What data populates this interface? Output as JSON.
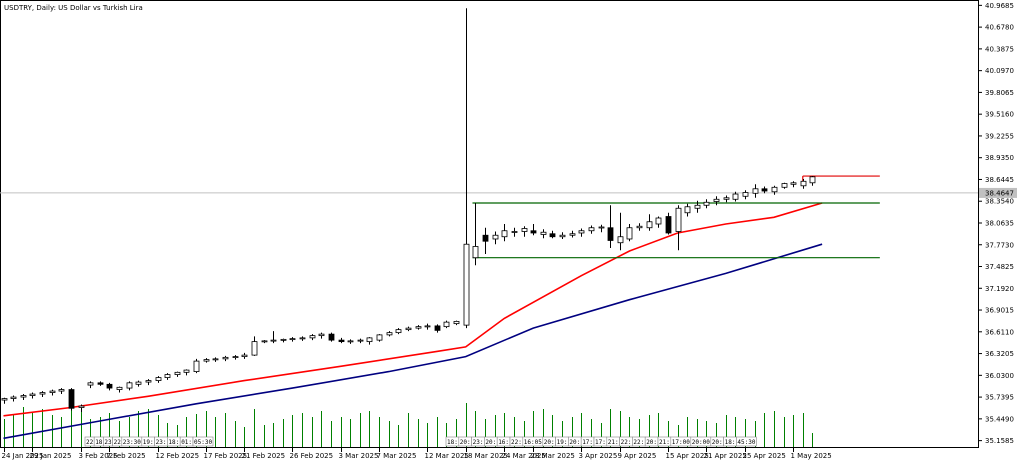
{
  "chart_data": {
    "type": "candlestick",
    "title": "USDTRY, Daily:  US Dollar vs Turkish Lira",
    "ylim": [
      35.06,
      41.04
    ],
    "y_ticks": [
      "40.9685",
      "40.6780",
      "40.3875",
      "40.0970",
      "39.8065",
      "39.5160",
      "39.2255",
      "38.9350",
      "38.6445",
      "38.3540",
      "38.0635",
      "37.7730",
      "37.4825",
      "37.1920",
      "36.9015",
      "36.6110",
      "36.3205",
      "36.0300",
      "35.7395",
      "35.4490",
      "35.1585"
    ],
    "x_labels": [
      "24 Jan 2025",
      "29 Jan 2025",
      "3 Feb 2025",
      "7 Feb 2025",
      "12 Feb 2025",
      "17 Feb 2025",
      "21 Feb 2025",
      "26 Feb 2025",
      "3 Mar 2025",
      "7 Mar 2025",
      "12 Mar 2025",
      "18 Mar 2025",
      "24 Mar 2025",
      "28 Mar 2025",
      "3 Apr 2025",
      "9 Apr 2025",
      "15 Apr 2025",
      "21 Apr 2025",
      "25 Apr 2025",
      "1 May 2025"
    ],
    "x_label_index": [
      0,
      3,
      8,
      11,
      16,
      21,
      25,
      30,
      35,
      39,
      44,
      48,
      52,
      55,
      60,
      64,
      69,
      73,
      77,
      82
    ],
    "current_price": "38.4647",
    "colors": {
      "bull_body": "#ffffff",
      "bear_body": "#000000",
      "wick": "#000000",
      "ma_fast": "#ff0000",
      "ma_slow": "#000080",
      "volume": "#008000",
      "channel": "#006400",
      "resistance": "#e00000",
      "crosshair": "#c0c0c0",
      "tag_fill": "#ffffff",
      "tag_stroke": "#888888"
    },
    "candles": [
      [
        35.7,
        35.73,
        35.65,
        35.72
      ],
      [
        35.72,
        35.76,
        35.68,
        35.74
      ],
      [
        35.74,
        35.78,
        35.7,
        35.76
      ],
      [
        35.76,
        35.8,
        35.72,
        35.78
      ],
      [
        35.78,
        35.82,
        35.74,
        35.8
      ],
      [
        35.8,
        35.84,
        35.76,
        35.82
      ],
      [
        35.82,
        35.86,
        35.78,
        35.84
      ],
      [
        35.84,
        35.86,
        35.56,
        35.59
      ],
      [
        35.6,
        35.64,
        35.54,
        35.62
      ],
      [
        35.9,
        35.95,
        35.86,
        35.93
      ],
      [
        35.93,
        35.95,
        35.89,
        35.91
      ],
      [
        35.91,
        35.93,
        35.83,
        35.86
      ],
      [
        35.84,
        35.88,
        35.8,
        35.87
      ],
      [
        35.86,
        35.95,
        35.83,
        35.93
      ],
      [
        35.91,
        35.96,
        35.88,
        35.94
      ],
      [
        35.94,
        35.98,
        35.9,
        35.96
      ],
      [
        35.96,
        36.02,
        35.93,
        36.0
      ],
      [
        36.0,
        36.06,
        35.97,
        36.04
      ],
      [
        36.04,
        36.08,
        36.01,
        36.07
      ],
      [
        36.07,
        36.11,
        36.03,
        36.1
      ],
      [
        36.08,
        36.25,
        36.06,
        36.22
      ],
      [
        36.22,
        36.26,
        36.2,
        36.24
      ],
      [
        36.24,
        36.27,
        36.21,
        36.25
      ],
      [
        36.25,
        36.29,
        36.22,
        36.27
      ],
      [
        36.27,
        36.3,
        36.24,
        36.28
      ],
      [
        36.28,
        36.33,
        36.25,
        36.3
      ],
      [
        36.3,
        36.55,
        36.29,
        36.48
      ],
      [
        36.48,
        36.5,
        36.46,
        36.49
      ],
      [
        36.49,
        36.62,
        36.46,
        36.5
      ],
      [
        36.5,
        36.52,
        36.47,
        36.51
      ],
      [
        36.51,
        36.54,
        36.48,
        36.52
      ],
      [
        36.52,
        36.55,
        36.49,
        36.53
      ],
      [
        36.53,
        36.58,
        36.5,
        36.56
      ],
      [
        36.56,
        36.6,
        36.52,
        36.58
      ],
      [
        36.58,
        36.6,
        36.48,
        36.5
      ],
      [
        36.5,
        36.53,
        36.46,
        36.48
      ],
      [
        36.48,
        36.51,
        36.45,
        36.49
      ],
      [
        36.49,
        36.52,
        36.46,
        36.5
      ],
      [
        36.48,
        36.54,
        36.44,
        36.53
      ],
      [
        36.5,
        36.58,
        36.48,
        36.57
      ],
      [
        36.57,
        36.62,
        36.55,
        36.6
      ],
      [
        36.6,
        36.66,
        36.58,
        36.64
      ],
      [
        36.64,
        36.68,
        36.62,
        36.66
      ],
      [
        36.66,
        36.7,
        36.64,
        36.68
      ],
      [
        36.68,
        36.72,
        36.64,
        36.69
      ],
      [
        36.69,
        36.71,
        36.6,
        36.63
      ],
      [
        36.68,
        36.76,
        36.66,
        36.74
      ],
      [
        36.72,
        36.76,
        36.7,
        36.75
      ],
      [
        36.7,
        40.93,
        36.66,
        37.78
      ],
      [
        37.6,
        38.33,
        37.5,
        37.75
      ],
      [
        37.9,
        38.0,
        37.65,
        37.82
      ],
      [
        37.85,
        37.95,
        37.78,
        37.9
      ],
      [
        37.88,
        38.05,
        37.82,
        37.96
      ],
      [
        37.94,
        38.0,
        37.88,
        37.95
      ],
      [
        37.95,
        38.02,
        37.88,
        37.99
      ],
      [
        37.96,
        38.05,
        37.9,
        37.93
      ],
      [
        37.91,
        37.98,
        37.86,
        37.94
      ],
      [
        37.92,
        37.96,
        37.86,
        37.88
      ],
      [
        37.88,
        37.94,
        37.85,
        37.9
      ],
      [
        37.9,
        37.96,
        37.87,
        37.92
      ],
      [
        37.93,
        37.99,
        37.88,
        37.96
      ],
      [
        37.96,
        38.03,
        37.92,
        38.0
      ],
      [
        38.0,
        38.04,
        37.94,
        38.01
      ],
      [
        38.0,
        38.3,
        37.73,
        37.83
      ],
      [
        37.8,
        38.2,
        37.7,
        37.88
      ],
      [
        37.85,
        38.05,
        37.82,
        38.0
      ],
      [
        38.0,
        38.06,
        37.96,
        38.02
      ],
      [
        38.0,
        38.18,
        37.96,
        38.08
      ],
      [
        38.05,
        38.15,
        38.0,
        38.13
      ],
      [
        38.15,
        38.2,
        37.91,
        37.93
      ],
      [
        37.95,
        38.3,
        37.7,
        38.26
      ],
      [
        38.2,
        38.32,
        38.15,
        38.28
      ],
      [
        38.26,
        38.36,
        38.2,
        38.3
      ],
      [
        38.3,
        38.38,
        38.26,
        38.34
      ],
      [
        38.35,
        38.42,
        38.3,
        38.38
      ],
      [
        38.38,
        38.43,
        38.34,
        38.4
      ],
      [
        38.38,
        38.48,
        38.35,
        38.45
      ],
      [
        38.42,
        38.5,
        38.38,
        38.47
      ],
      [
        38.46,
        38.58,
        38.4,
        38.52
      ],
      [
        38.52,
        38.55,
        38.46,
        38.49
      ],
      [
        38.48,
        38.56,
        38.44,
        38.54
      ],
      [
        38.54,
        38.6,
        38.52,
        38.59
      ],
      [
        38.58,
        38.62,
        38.54,
        38.6
      ],
      [
        38.56,
        38.65,
        38.52,
        38.62
      ],
      [
        38.6,
        38.69,
        38.56,
        38.68
      ]
    ],
    "volume": [
      28,
      33,
      40,
      35,
      38,
      32,
      30,
      42,
      36,
      28,
      30,
      34,
      26,
      30,
      36,
      38,
      32,
      24,
      22,
      30,
      33,
      36,
      30,
      34,
      26,
      20,
      38,
      22,
      24,
      28,
      32,
      34,
      30,
      36,
      26,
      30,
      28,
      34,
      36,
      30,
      26,
      22,
      34,
      28,
      24,
      30,
      24,
      28,
      44,
      36,
      28,
      32,
      34,
      30,
      26,
      36,
      38,
      32,
      26,
      30,
      34,
      28,
      24,
      38,
      36,
      30,
      28,
      32,
      34,
      26,
      22,
      30,
      28,
      26,
      24,
      32,
      30,
      28,
      26,
      34,
      36,
      30,
      32,
      34,
      14
    ],
    "volume_tags_a": [
      "22",
      "18",
      "23",
      "22",
      "23:30",
      "19:",
      "23:",
      "18:",
      "01:",
      "05:30"
    ],
    "volume_tags_b": [
      "18:",
      "20:",
      "23:",
      "20:",
      "16:",
      "22:",
      "16:05",
      "20:",
      "19:",
      "20:",
      "17:",
      "17:",
      "21:",
      "22:",
      "22:",
      "20:",
      "21:",
      "17:00",
      "20:00",
      "20:",
      "18:",
      "45:30"
    ],
    "ma_fast": {
      "x": [
        0,
        7,
        15,
        25,
        35,
        45,
        48,
        52,
        60,
        65,
        70,
        75,
        80,
        85
      ],
      "y": [
        35.49,
        35.6,
        35.75,
        35.96,
        36.15,
        36.35,
        36.41,
        36.79,
        37.36,
        37.69,
        37.93,
        38.05,
        38.14,
        38.33
      ]
    },
    "ma_slow": {
      "x": [
        0,
        10,
        20,
        30,
        40,
        48,
        55,
        65,
        75,
        85
      ],
      "y": [
        35.19,
        35.42,
        35.65,
        35.86,
        36.08,
        36.28,
        36.66,
        37.04,
        37.39,
        37.78
      ]
    },
    "channel": {
      "x1": 48.7,
      "x2": 91,
      "top": 38.33,
      "bottom": 37.6
    },
    "resistance": {
      "x1": 83,
      "x2": 91,
      "y": 38.69
    }
  }
}
